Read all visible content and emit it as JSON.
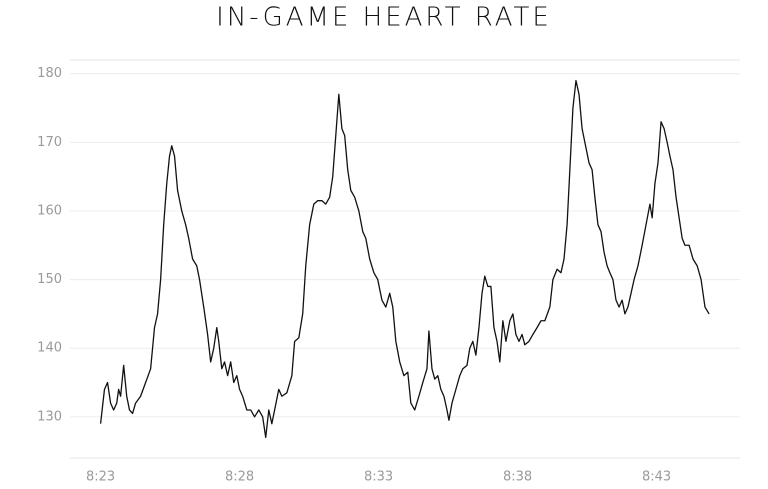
{
  "chart_data": {
    "type": "line",
    "title": "IN-GAME HEART RATE",
    "color": "#111111",
    "grid": true,
    "x": [
      503.0,
      503.14,
      503.25,
      503.36,
      503.47,
      503.58,
      503.65,
      503.72,
      503.83,
      503.94,
      504.04,
      504.15,
      504.26,
      504.44,
      504.62,
      504.8,
      504.94,
      505.05,
      505.16,
      505.27,
      505.38,
      505.48,
      505.56,
      505.66,
      505.77,
      505.92,
      506.06,
      506.17,
      506.31,
      506.46,
      506.56,
      506.71,
      506.85,
      506.96,
      507.07,
      507.18,
      507.25,
      507.36,
      507.46,
      507.57,
      507.68,
      507.79,
      507.9,
      508.0,
      508.11,
      508.26,
      508.4,
      508.54,
      508.69,
      508.83,
      508.94,
      509.05,
      509.16,
      509.26,
      509.41,
      509.52,
      509.7,
      509.88,
      509.98,
      510.13,
      510.27,
      510.38,
      510.52,
      510.67,
      510.81,
      510.96,
      511.1,
      511.24,
      511.35,
      511.46,
      511.57,
      511.68,
      511.78,
      511.89,
      512.0,
      512.14,
      512.29,
      512.43,
      512.54,
      512.68,
      512.83,
      512.97,
      513.12,
      513.26,
      513.4,
      513.51,
      513.62,
      513.76,
      513.91,
      514.05,
      514.16,
      514.3,
      514.45,
      514.59,
      514.74,
      514.81,
      514.92,
      515.02,
      515.13,
      515.24,
      515.35,
      515.46,
      515.53,
      515.64,
      515.78,
      515.92,
      516.03,
      516.18,
      516.28,
      516.39,
      516.5,
      516.61,
      516.72,
      516.82,
      516.93,
      517.04,
      517.15,
      517.26,
      517.36,
      517.47,
      517.58,
      517.72,
      517.83,
      517.94,
      518.05,
      518.16,
      518.26,
      518.41,
      518.55,
      518.7,
      518.84,
      518.98,
      519.16,
      519.27,
      519.42,
      519.56,
      519.67,
      519.78,
      519.88,
      519.99,
      520.1,
      520.21,
      520.32,
      520.42,
      520.57,
      520.68,
      520.78,
      520.89,
      521.0,
      521.11,
      521.22,
      521.32,
      521.43,
      521.54,
      521.65,
      521.76,
      521.86,
      521.97,
      522.08,
      522.19,
      522.33,
      522.48,
      522.62,
      522.76,
      522.84,
      522.94,
      523.05,
      523.16,
      523.27,
      523.38,
      523.48,
      523.59,
      523.7,
      523.81,
      523.92,
      524.02,
      524.17,
      524.31,
      524.46,
      524.6,
      524.74,
      524.89
    ],
    "values": [
      129,
      134,
      135,
      132,
      131,
      132,
      134,
      133,
      137.5,
      133,
      131,
      130.5,
      132,
      133,
      135,
      137,
      143,
      145,
      150,
      158,
      164,
      168,
      169.5,
      168,
      163,
      160,
      158,
      156,
      153,
      152,
      150,
      146,
      142,
      138,
      140,
      143,
      141,
      137,
      138,
      136,
      138,
      135,
      136,
      134,
      133,
      131,
      131,
      130,
      131,
      130,
      127,
      131,
      129,
      131,
      134,
      133,
      133.5,
      136,
      141,
      141.5,
      145,
      152,
      158,
      161,
      161.5,
      161.5,
      161,
      162,
      165,
      171,
      177,
      172,
      171,
      166,
      163,
      162,
      160,
      157,
      156,
      153,
      151,
      150,
      147,
      146,
      148,
      146,
      141,
      138,
      136,
      136.5,
      132,
      131,
      133,
      135,
      137,
      142.5,
      137,
      135.5,
      136,
      134,
      133,
      131,
      129.5,
      132,
      134,
      136,
      137,
      137.5,
      140,
      141,
      139,
      143,
      148,
      150.5,
      149,
      149,
      143,
      141,
      138,
      144,
      141,
      144,
      145,
      142,
      141,
      142,
      140.5,
      141,
      142,
      143,
      144,
      144,
      146,
      150,
      151.5,
      151,
      153,
      158,
      166,
      175,
      179,
      177,
      172,
      170,
      167,
      166,
      162,
      158,
      157,
      154,
      152,
      151,
      150,
      147,
      146,
      147,
      145,
      146,
      148,
      150,
      152,
      155,
      158,
      161,
      159,
      164,
      167,
      173,
      172,
      170,
      168,
      166,
      162,
      159,
      156,
      155,
      155,
      153,
      152,
      150,
      146,
      145
    ],
    "xlim": [
      501.9,
      526.0
    ],
    "xticks": [
      {
        "value": 503,
        "label": "8:23"
      },
      {
        "value": 508,
        "label": "8:28"
      },
      {
        "value": 513,
        "label": "8:33"
      },
      {
        "value": 518,
        "label": "8:38"
      },
      {
        "value": 523,
        "label": "8:43"
      }
    ],
    "ylim": [
      124,
      182
    ],
    "yticks": [
      130,
      140,
      150,
      160,
      170,
      180
    ]
  }
}
